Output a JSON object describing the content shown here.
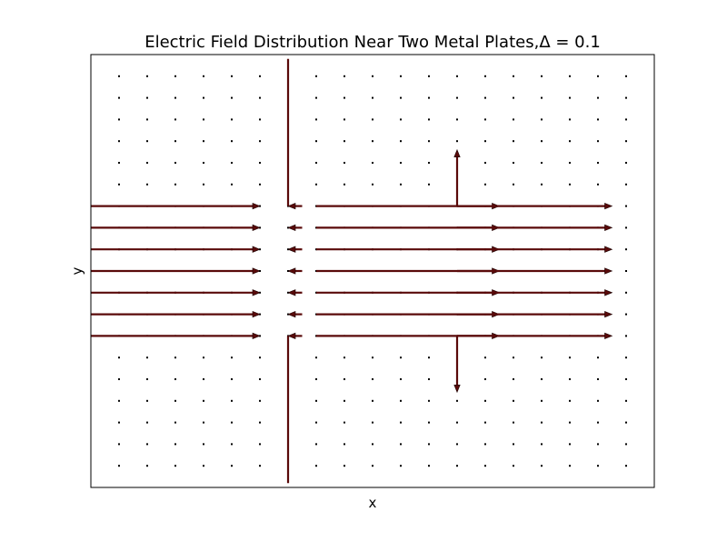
{
  "chart_data": {
    "type": "quiver",
    "title": "Electric Field Distribution Near Two Metal Plates,Δ = 0.1",
    "xlabel": "x",
    "ylabel": "y",
    "xlim": [
      0,
      20
    ],
    "ylim": [
      0,
      20
    ],
    "grid": false,
    "legend": "none",
    "colors": {
      "arrow": "#5a0a0a",
      "arrow_outline": "#1a0000",
      "frame": "#000000",
      "background": "#ffffff"
    },
    "grid_points": {
      "x": [
        1,
        2,
        3,
        4,
        5,
        6,
        7,
        8,
        9,
        10,
        11,
        12,
        13,
        14,
        15,
        16,
        17,
        18,
        19
      ],
      "y": [
        1,
        2,
        3,
        4,
        5,
        6,
        7,
        8,
        9,
        10,
        11,
        12,
        13,
        14,
        15,
        16,
        17,
        18,
        19
      ]
    },
    "vectors": [
      {
        "x": 0,
        "y": 7,
        "u": 6,
        "v": 0
      },
      {
        "x": 0,
        "y": 8,
        "u": 6,
        "v": 0
      },
      {
        "x": 0,
        "y": 9,
        "u": 6,
        "v": 0
      },
      {
        "x": 0,
        "y": 10,
        "u": 6,
        "v": 0
      },
      {
        "x": 0,
        "y": 11,
        "u": 6,
        "v": 0
      },
      {
        "x": 0,
        "y": 12,
        "u": 6,
        "v": 0
      },
      {
        "x": 0,
        "y": 13,
        "u": 6,
        "v": 0
      },
      {
        "x": 7.5,
        "y": 7,
        "u": -0.5,
        "v": 0
      },
      {
        "x": 7.5,
        "y": 8,
        "u": -0.5,
        "v": 0
      },
      {
        "x": 7.5,
        "y": 9,
        "u": -0.5,
        "v": 0
      },
      {
        "x": 7.5,
        "y": 10,
        "u": -0.5,
        "v": 0
      },
      {
        "x": 7.5,
        "y": 11,
        "u": -0.5,
        "v": 0
      },
      {
        "x": 7.5,
        "y": 12,
        "u": -0.5,
        "v": 0
      },
      {
        "x": 7.5,
        "y": 13,
        "u": -0.5,
        "v": 0
      },
      {
        "x": 8,
        "y": 7,
        "u": 6.5,
        "v": 0
      },
      {
        "x": 8,
        "y": 8,
        "u": 6.5,
        "v": 0
      },
      {
        "x": 8,
        "y": 9,
        "u": 6.5,
        "v": 0
      },
      {
        "x": 8,
        "y": 10,
        "u": 6.5,
        "v": 0
      },
      {
        "x": 8,
        "y": 11,
        "u": 6.5,
        "v": 0
      },
      {
        "x": 8,
        "y": 12,
        "u": 6.5,
        "v": 0
      },
      {
        "x": 8,
        "y": 13,
        "u": 6.5,
        "v": 0
      },
      {
        "x": 13,
        "y": 7,
        "u": 5.5,
        "v": 0
      },
      {
        "x": 13,
        "y": 8,
        "u": 5.5,
        "v": 0
      },
      {
        "x": 13,
        "y": 9,
        "u": 5.5,
        "v": 0
      },
      {
        "x": 13,
        "y": 10,
        "u": 5.5,
        "v": 0
      },
      {
        "x": 13,
        "y": 11,
        "u": 5.5,
        "v": 0
      },
      {
        "x": 13,
        "y": 12,
        "u": 5.5,
        "v": 0
      },
      {
        "x": 13,
        "y": 13,
        "u": 5.5,
        "v": 0
      },
      {
        "x": 13,
        "y": 13,
        "u": 0,
        "v": 2.6
      },
      {
        "x": 13,
        "y": 7,
        "u": 0,
        "v": -2.6
      },
      {
        "x": 7,
        "y": 13,
        "u": 0,
        "v": 7
      },
      {
        "x": 7,
        "y": 7,
        "u": 0,
        "v": -7
      }
    ]
  }
}
